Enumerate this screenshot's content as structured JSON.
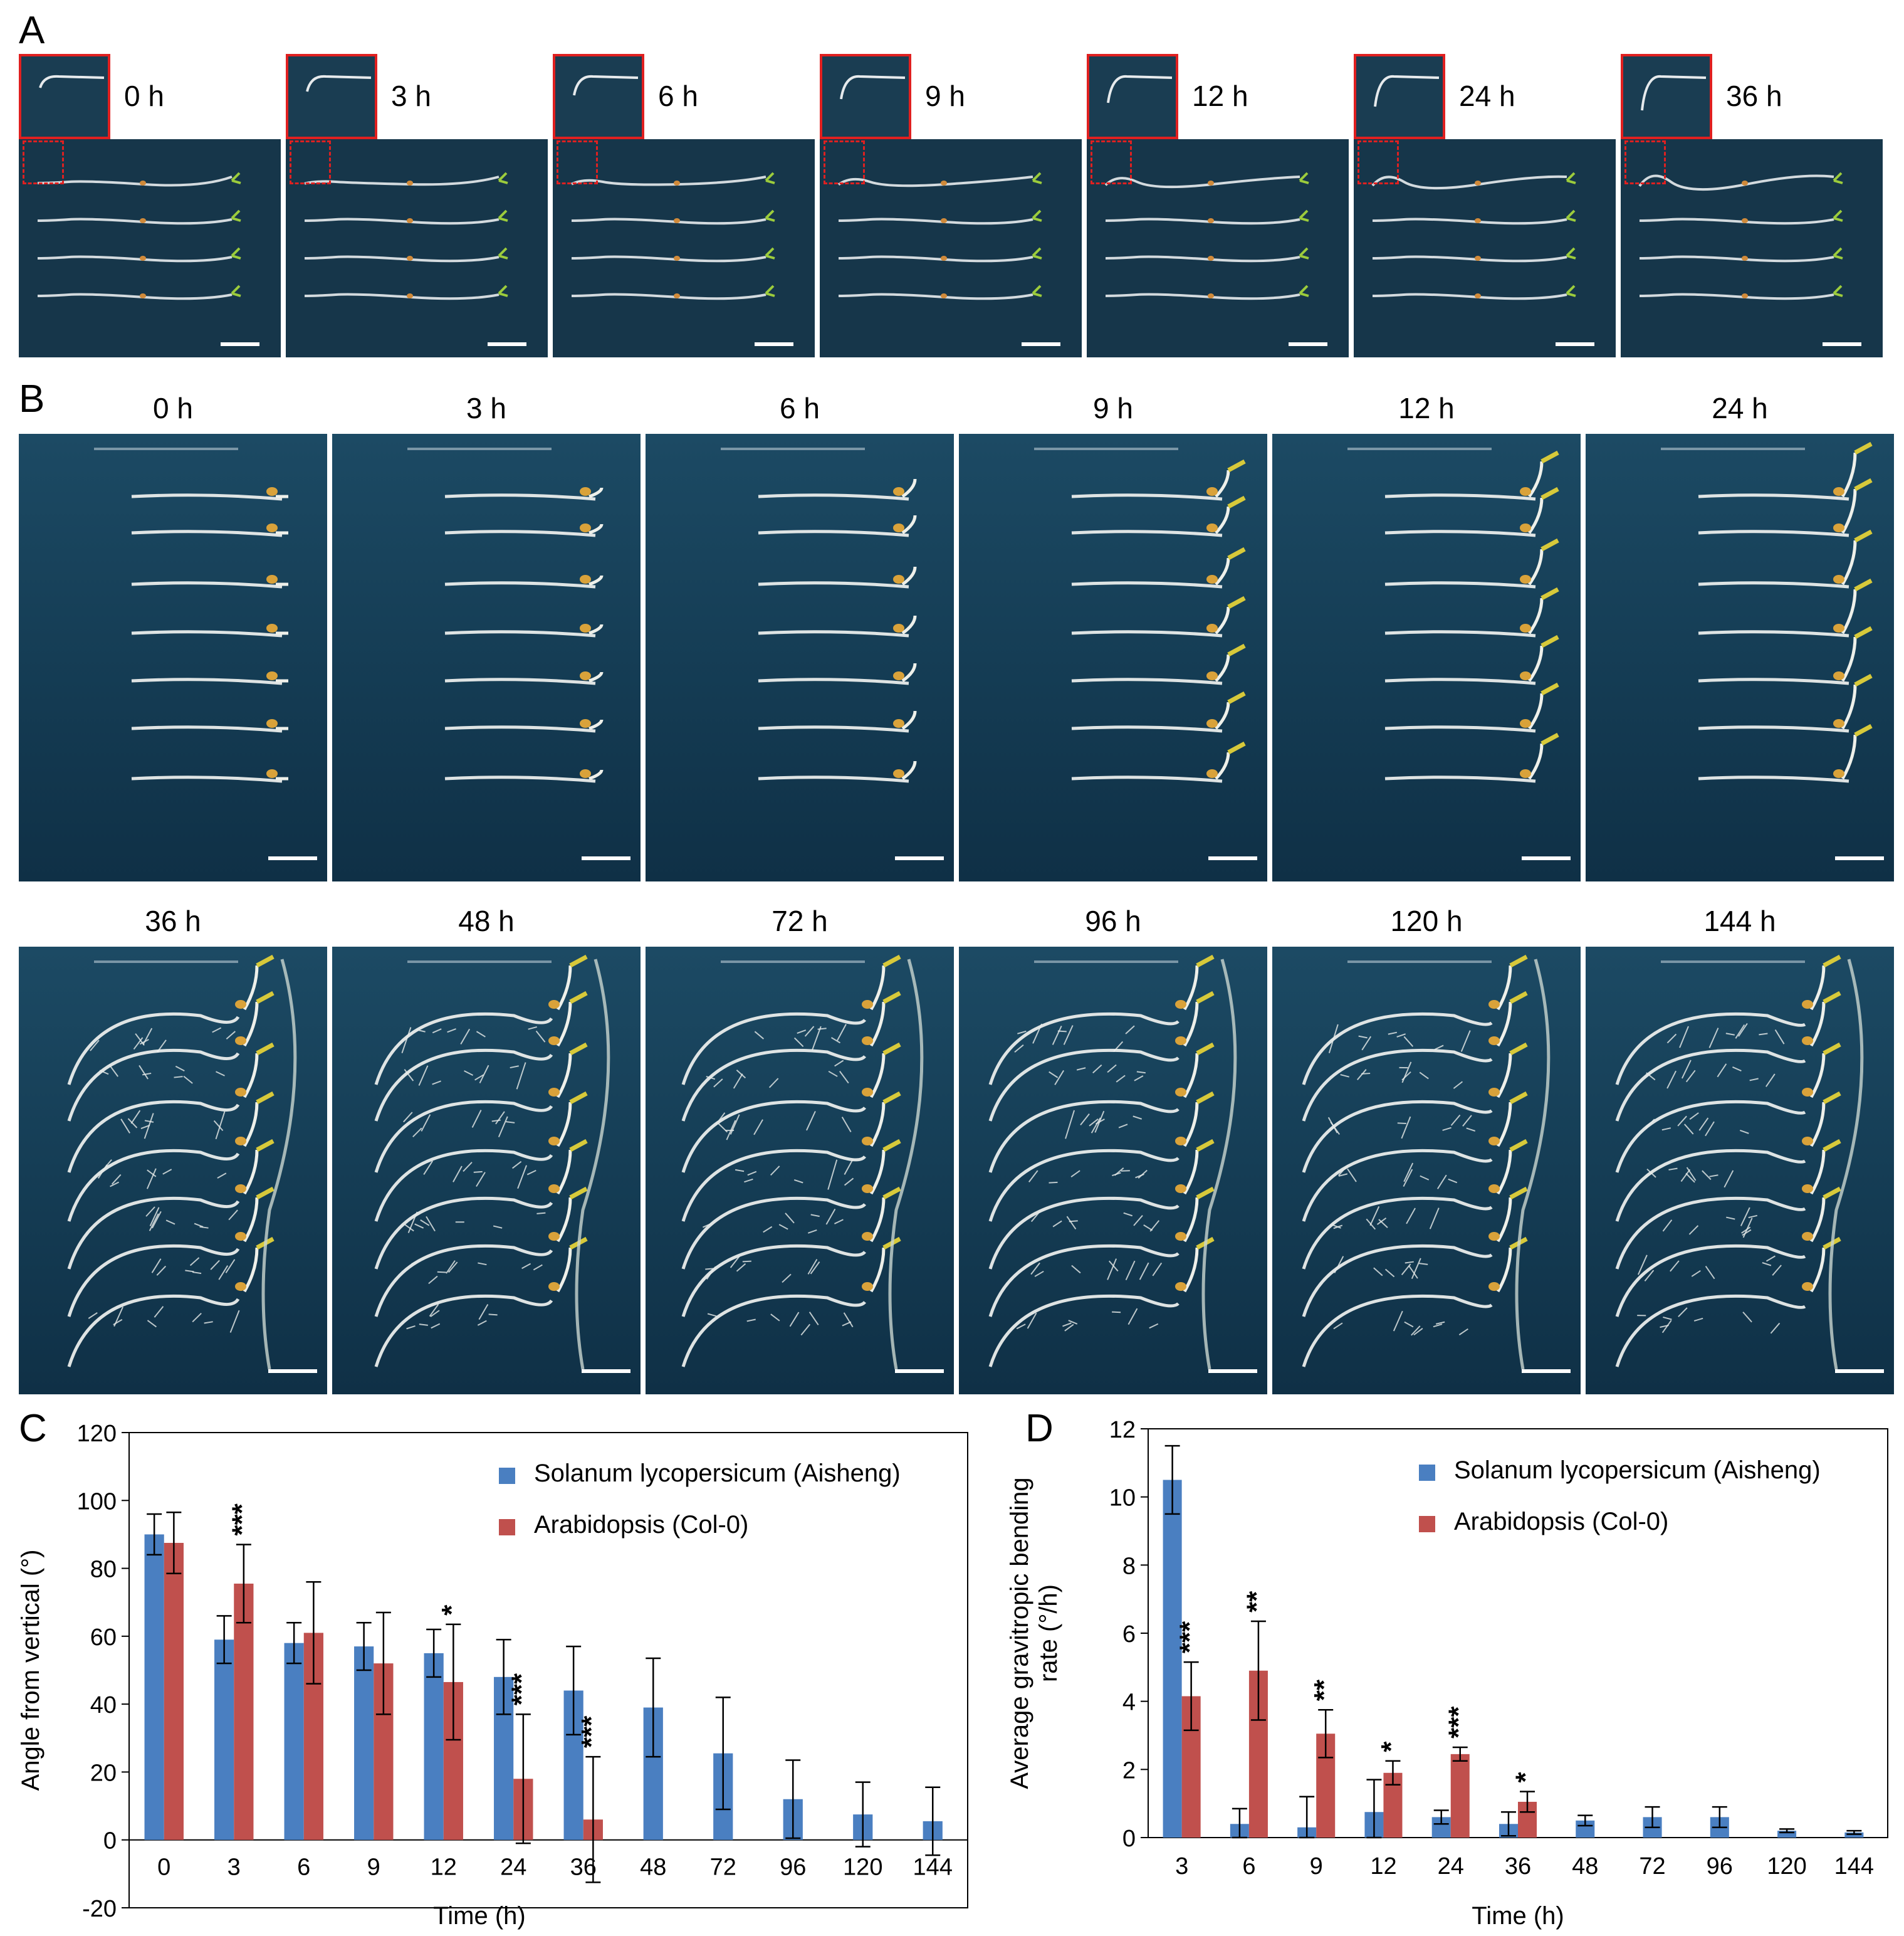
{
  "figure": {
    "panel_a": {
      "label": "A",
      "times": [
        "0 h",
        "3 h",
        "6 h",
        "9 h",
        "12 h",
        "24 h",
        "36 h"
      ]
    },
    "panel_b": {
      "label": "B",
      "times_row1": [
        "0 h",
        "3 h",
        "6 h",
        "9 h",
        "12 h",
        "24 h"
      ],
      "times_row2": [
        "36 h",
        "48 h",
        "72 h",
        "96 h",
        "120 h",
        "144 h"
      ]
    },
    "panel_c": {
      "label": "C"
    },
    "panel_d": {
      "label": "D"
    }
  },
  "colors": {
    "blue": "#4a7fc1",
    "red": "#c0504d",
    "inset_border": "#e02020",
    "plate_dark": "#16364a"
  },
  "chart_data": [
    {
      "type": "bar",
      "panel": "C",
      "title": "",
      "xlabel": "Time (h)",
      "ylabel": "Angle from vertical (°)",
      "ylim": [
        -20,
        120
      ],
      "yticks": [
        -20,
        0,
        20,
        40,
        60,
        80,
        100,
        120
      ],
      "categories": [
        "0",
        "3",
        "6",
        "9",
        "12",
        "24",
        "36",
        "48",
        "72",
        "96",
        "120",
        "144"
      ],
      "legend_position": "top-right",
      "series": [
        {
          "name": "Solanum lycopersicum (Aisheng)",
          "color": "#4a7fc1",
          "values": [
            90,
            59,
            58,
            57,
            55,
            48,
            44,
            39,
            25.5,
            12,
            7.5,
            5.5
          ],
          "errors": [
            6,
            7,
            6,
            7,
            7,
            11,
            13,
            14.5,
            16.5,
            11.5,
            9.5,
            10
          ]
        },
        {
          "name": "Arabidopsis (Col-0)",
          "color": "#c0504d",
          "values": [
            87.5,
            75.5,
            61,
            52,
            46.5,
            18,
            6,
            null,
            null,
            null,
            null,
            null
          ],
          "errors": [
            9,
            11.5,
            15,
            15,
            17,
            19,
            18.5,
            null,
            null,
            null,
            null,
            null
          ]
        }
      ],
      "annotations": [
        {
          "category": "3",
          "text": "***"
        },
        {
          "category": "12",
          "text": "*"
        },
        {
          "category": "24",
          "text": "***"
        },
        {
          "category": "36",
          "text": "***"
        }
      ]
    },
    {
      "type": "bar",
      "panel": "D",
      "title": "",
      "xlabel": "Time (h)",
      "ylabel": "Average gravitropic bending rate (°/h)",
      "ylabel_lines": [
        "Average gravitropic bending",
        "rate (°/h)"
      ],
      "ylim": [
        0,
        12
      ],
      "yticks": [
        0,
        2,
        4,
        6,
        8,
        10,
        12
      ],
      "categories": [
        "3",
        "6",
        "9",
        "12",
        "24",
        "36",
        "48",
        "72",
        "96",
        "120",
        "144"
      ],
      "legend_position": "top-right",
      "series": [
        {
          "name": "Solanum lycopersicum (Aisheng)",
          "color": "#4a7fc1",
          "values": [
            10.5,
            0.4,
            0.3,
            0.75,
            0.6,
            0.4,
            0.5,
            0.6,
            0.6,
            0.2,
            0.15
          ],
          "errors": [
            1.0,
            0.45,
            0.9,
            0.95,
            0.2,
            0.35,
            0.15,
            0.3,
            0.3,
            0.05,
            0.05
          ]
        },
        {
          "name": "Arabidopsis (Col-0)",
          "color": "#c0504d",
          "values": [
            4.15,
            4.9,
            3.05,
            1.9,
            2.45,
            1.05,
            null,
            null,
            null,
            null,
            null
          ],
          "errors": [
            1.0,
            1.45,
            0.7,
            0.35,
            0.2,
            0.3,
            null,
            null,
            null,
            null,
            null
          ]
        }
      ],
      "annotations": [
        {
          "category": "3",
          "text": "***"
        },
        {
          "category": "6",
          "text": "**"
        },
        {
          "category": "9",
          "text": "**"
        },
        {
          "category": "12",
          "text": "*"
        },
        {
          "category": "24",
          "text": "***"
        },
        {
          "category": "36",
          "text": "*"
        }
      ]
    }
  ]
}
